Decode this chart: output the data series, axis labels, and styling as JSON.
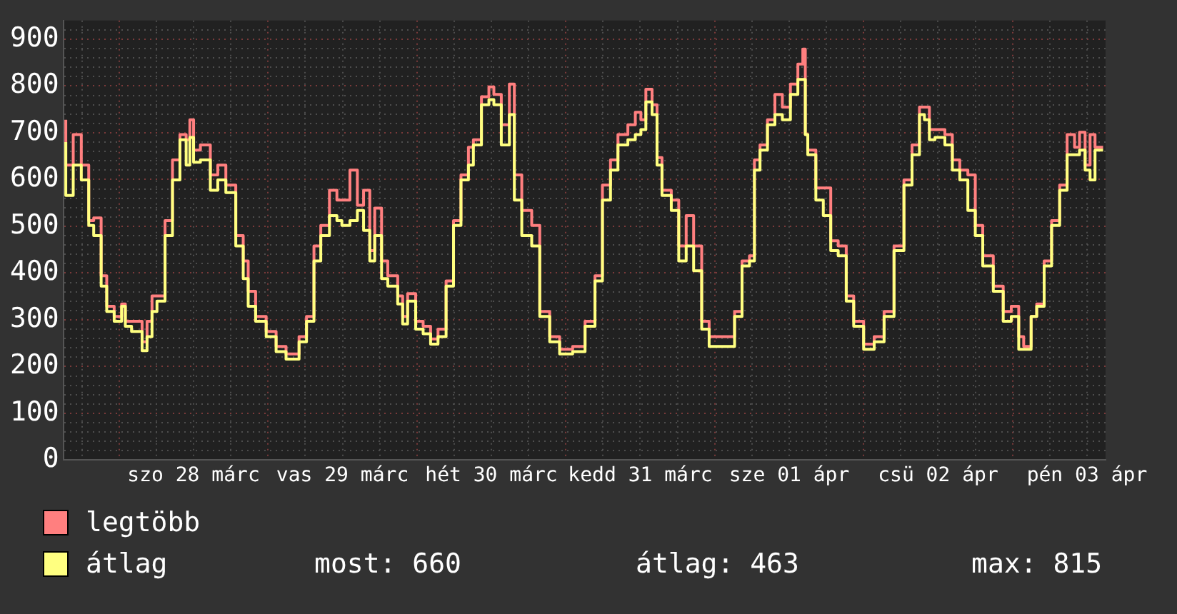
{
  "chart_data": {
    "type": "step",
    "x": [
      "--03-27T15:24",
      "--03-27T16:36",
      "--03-27T17:54",
      "--03-27T19:06",
      "--03-27T19:54",
      "--03-27T21:06",
      "--03-27T22:00",
      "--03-27T23:12",
      "--03-28T00:24",
      "--03-28T01:00",
      "--03-28T02:00",
      "--03-28T03:42",
      "--03-28T04:30",
      "--03-28T05:18",
      "--03-28T06:06",
      "--03-28T07:24",
      "--03-28T08:36",
      "--03-28T09:48",
      "--03-28T10:48",
      "--03-28T11:24",
      "--03-28T12:00",
      "--03-28T13:06",
      "--03-28T14:42",
      "--03-28T15:54",
      "--03-28T17:12",
      "--03-28T18:48",
      "--03-28T20:00",
      "--03-28T20:48",
      "--03-28T22:00",
      "--03-28T23:42",
      "--03-29T01:18",
      "--03-29T02:54",
      "--03-29T05:00",
      "--03-29T06:12",
      "--03-29T07:24",
      "--03-29T08:30",
      "--03-29T09:54",
      "--03-29T11:06",
      "--03-29T11:54",
      "--03-29T13:12",
      "--03-29T14:24",
      "--03-29T15:24",
      "--03-29T16:24",
      "--03-29T17:12",
      "--03-29T18:18",
      "--03-29T19:18",
      "--03-29T20:54",
      "--03-29T21:42",
      "--03-29T22:30",
      "--03-29T23:48",
      "--03-30T01:00",
      "--03-30T02:12",
      "--03-30T03:24",
      "--03-30T04:42",
      "--03-30T05:54",
      "--03-30T07:06",
      "--03-30T08:18",
      "--03-30T09:06",
      "--03-30T10:24",
      "--03-30T11:36",
      "--03-30T12:24",
      "--03-30T13:36",
      "--03-30T14:54",
      "--03-30T15:42",
      "--03-30T16:54",
      "--03-30T18:30",
      "--03-30T19:48",
      "--03-30T21:24",
      "--03-30T23:00",
      "--03-31T01:06",
      "--03-31T03:06",
      "--03-31T04:42",
      "--03-31T05:54",
      "--03-31T07:12",
      "--03-31T08:24",
      "--03-31T10:00",
      "--03-31T11:12",
      "--03-31T12:06",
      "--03-31T12:54",
      "--03-31T13:54",
      "--03-31T14:42",
      "--03-31T15:30",
      "--03-31T17:00",
      "--03-31T18:12",
      "--03-31T19:24",
      "--03-31T20:36",
      "--03-31T21:54",
      "--03-31T23:06",
      "--04-01T01:12",
      "--04-01T03:12",
      "--04-01T04:24",
      "--04-01T05:36",
      "--04-01T06:24",
      "--04-01T07:18",
      "--04-01T08:30",
      "--04-01T09:42",
      "--04-01T10:54",
      "--04-01T12:12",
      "--04-01T13:24",
      "--04-01T14:12",
      "--04-01T14:36",
      "--04-01T15:00",
      "--04-01T16:18",
      "--04-01T17:30",
      "--04-01T18:42",
      "--04-01T19:54",
      "--04-01T21:12",
      "--04-01T22:24",
      "--04-02T00:00",
      "--04-02T01:42",
      "--04-02T03:18",
      "--04-02T04:54",
      "--04-02T06:30",
      "--04-02T07:48",
      "--04-02T09:00",
      "--04-02T09:48",
      "--04-02T10:36",
      "--04-02T11:30",
      "--04-02T13:06",
      "--04-02T14:18",
      "--04-02T15:30",
      "--04-02T16:48",
      "--04-02T18:00",
      "--04-02T19:12",
      "--04-02T20:54",
      "--04-02T22:30",
      "--04-02T23:48",
      "--04-03T01:00",
      "--04-03T01:48",
      "--04-03T03:00",
      "--04-03T03:54",
      "--04-03T05:06",
      "--04-03T06:18",
      "--04-03T07:36",
      "--04-03T08:48",
      "--04-03T10:00",
      "--04-03T10:48",
      "--04-03T11:42",
      "--04-03T12:30",
      "--04-03T13:18",
      "--04-03T14:36"
    ],
    "series": [
      {
        "name": "legtöbb",
        "color": "#ff7f7f",
        "values": [
          728,
          631,
          696,
          631,
          512,
          518,
          394,
          329,
          307,
          334,
          297,
          297,
          253,
          297,
          351,
          351,
          512,
          642,
          696,
          685,
          728,
          663,
          674,
          610,
          631,
          588,
          480,
          426,
          361,
          307,
          275,
          243,
          227,
          264,
          307,
          458,
          502,
          577,
          556,
          556,
          620,
          545,
          577,
          448,
          539,
          426,
          394,
          351,
          307,
          356,
          297,
          286,
          259,
          280,
          383,
          512,
          610,
          669,
          685,
          777,
          798,
          782,
          717,
          804,
          610,
          534,
          502,
          318,
          264,
          237,
          243,
          297,
          394,
          588,
          642,
          696,
          717,
          744,
          728,
          793,
          760,
          647,
          577,
          556,
          458,
          523,
          458,
          297,
          264,
          264,
          318,
          426,
          437,
          642,
          674,
          728,
          782,
          755,
          804,
          847,
          879,
          696,
          663,
          582,
          582,
          469,
          458,
          351,
          297,
          248,
          264,
          318,
          458,
          599,
          674,
          755,
          755,
          707,
          707,
          696,
          642,
          620,
          610,
          502,
          437,
          372,
          318,
          329,
          264,
          243,
          307,
          334,
          426,
          512,
          588,
          696,
          669,
          701,
          631,
          696,
          669
        ]
      },
      {
        "name": "átlag",
        "color": "#ffff80",
        "values": [
          680,
          566,
          631,
          599,
          502,
          480,
          372,
          318,
          297,
          329,
          286,
          275,
          234,
          264,
          318,
          340,
          480,
          599,
          685,
          631,
          690,
          637,
          642,
          577,
          599,
          572,
          458,
          388,
          329,
          297,
          264,
          232,
          216,
          253,
          297,
          426,
          480,
          523,
          512,
          502,
          512,
          534,
          491,
          426,
          480,
          388,
          372,
          334,
          291,
          340,
          280,
          270,
          248,
          264,
          372,
          502,
          599,
          631,
          674,
          760,
          771,
          760,
          674,
          739,
          556,
          480,
          458,
          307,
          253,
          227,
          232,
          286,
          383,
          556,
          620,
          674,
          685,
          696,
          707,
          766,
          739,
          631,
          566,
          534,
          426,
          458,
          405,
          280,
          243,
          243,
          307,
          415,
          426,
          620,
          663,
          717,
          739,
          728,
          782,
          814,
          814,
          696,
          653,
          556,
          523,
          448,
          437,
          340,
          286,
          237,
          253,
          307,
          448,
          588,
          653,
          739,
          728,
          685,
          690,
          674,
          620,
          599,
          534,
          480,
          415,
          361,
          297,
          307,
          237,
          237,
          307,
          329,
          415,
          502,
          577,
          653,
          653,
          663,
          620,
          599,
          663
        ]
      }
    ],
    "xlim": [
      "--03-27T15:00",
      "--04-03T15:00"
    ],
    "xticks": [
      {
        "value": "--03-27T18:00",
        "label": null
      },
      {
        "value": "--03-28T00:00",
        "label": null
      },
      {
        "value": "--03-28T06:00",
        "label": null
      },
      {
        "value": "--03-28T12:00",
        "label": "szo 28 márc"
      },
      {
        "value": "--03-28T18:00",
        "label": null
      },
      {
        "value": "--03-29T00:00",
        "label": null
      },
      {
        "value": "--03-29T06:00",
        "label": null
      },
      {
        "value": "--03-29T12:00",
        "label": "vas 29 márc"
      },
      {
        "value": "--03-29T18:00",
        "label": null
      },
      {
        "value": "--03-30T00:00",
        "label": null
      },
      {
        "value": "--03-30T06:00",
        "label": null
      },
      {
        "value": "--03-30T12:00",
        "label": "hét 30 márc"
      },
      {
        "value": "--03-30T18:00",
        "label": null
      },
      {
        "value": "--03-31T00:00",
        "label": null
      },
      {
        "value": "--03-31T06:00",
        "label": null
      },
      {
        "value": "--03-31T12:00",
        "label": "kedd 31 márc"
      },
      {
        "value": "--03-31T18:00",
        "label": null
      },
      {
        "value": "--04-01T00:00",
        "label": null
      },
      {
        "value": "--04-01T06:00",
        "label": null
      },
      {
        "value": "--04-01T12:00",
        "label": "sze 01 ápr"
      },
      {
        "value": "--04-01T18:00",
        "label": null
      },
      {
        "value": "--04-02T00:00",
        "label": null
      },
      {
        "value": "--04-02T06:00",
        "label": null
      },
      {
        "value": "--04-02T12:00",
        "label": "csü 02 ápr"
      },
      {
        "value": "--04-02T18:00",
        "label": null
      },
      {
        "value": "--04-03T00:00",
        "label": null
      },
      {
        "value": "--04-03T06:00",
        "label": null
      },
      {
        "value": "--04-03T12:00",
        "label": "pén 03 ápr"
      }
    ],
    "ylim": [
      0,
      940
    ],
    "yticks": [
      0,
      {
        "value": 20,
        "label": null
      },
      {
        "value": 40,
        "label": null
      },
      {
        "value": 60,
        "label": null
      },
      {
        "value": 80,
        "label": null
      },
      100,
      {
        "value": 120,
        "label": null
      },
      {
        "value": 140,
        "label": null
      },
      {
        "value": 160,
        "label": null
      },
      {
        "value": 180,
        "label": null
      },
      200,
      {
        "value": 220,
        "label": null
      },
      {
        "value": 240,
        "label": null
      },
      {
        "value": 260,
        "label": null
      },
      {
        "value": 280,
        "label": null
      },
      300,
      {
        "value": 320,
        "label": null
      },
      {
        "value": 340,
        "label": null
      },
      {
        "value": 360,
        "label": null
      },
      {
        "value": 380,
        "label": null
      },
      400,
      {
        "value": 420,
        "label": null
      },
      {
        "value": 440,
        "label": null
      },
      {
        "value": 460,
        "label": null
      },
      {
        "value": 480,
        "label": null
      },
      500,
      {
        "value": 520,
        "label": null
      },
      {
        "value": 540,
        "label": null
      },
      {
        "value": 560,
        "label": null
      },
      {
        "value": 580,
        "label": null
      },
      600,
      {
        "value": 620,
        "label": null
      },
      {
        "value": 640,
        "label": null
      },
      {
        "value": 660,
        "label": null
      },
      {
        "value": 680,
        "label": null
      },
      700,
      {
        "value": 720,
        "label": null
      },
      {
        "value": 740,
        "label": null
      },
      {
        "value": 760,
        "label": null
      },
      {
        "value": 780,
        "label": null
      },
      800,
      {
        "value": 820,
        "label": null
      },
      {
        "value": 840,
        "label": null
      },
      {
        "value": 860,
        "label": null
      },
      {
        "value": 880,
        "label": null
      },
      900,
      {
        "value": 920,
        "label": null
      }
    ],
    "grid": true,
    "legend": "bottom left",
    "annotations": [
      "most: 660",
      "átlag: 463",
      "max: 815"
    ]
  }
}
